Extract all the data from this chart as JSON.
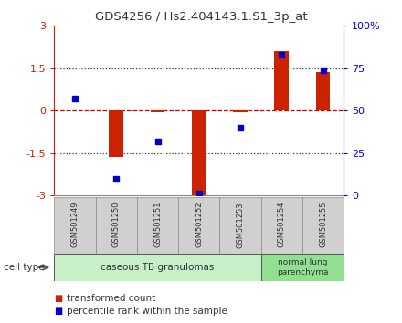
{
  "title": "GDS4256 / Hs2.404143.1.S1_3p_at",
  "samples": [
    "GSM501249",
    "GSM501250",
    "GSM501251",
    "GSM501252",
    "GSM501253",
    "GSM501254",
    "GSM501255"
  ],
  "transformed_count": [
    0.02,
    -1.65,
    -0.05,
    -3.0,
    -0.05,
    2.1,
    1.35
  ],
  "percentile_rank": [
    57,
    10,
    32,
    1,
    40,
    83,
    74
  ],
  "ylim_left": [
    -3,
    3
  ],
  "ylim_right": [
    0,
    100
  ],
  "yticks_left": [
    -3,
    -1.5,
    0,
    1.5,
    3
  ],
  "yticks_right": [
    0,
    25,
    50,
    75,
    100
  ],
  "ytick_labels_right": [
    "0",
    "25",
    "50",
    "75",
    "100%"
  ],
  "bar_color": "#cc2200",
  "dot_color": "#0000cc",
  "zero_line_color": "#cc0000",
  "dotted_line_color": "#333333",
  "group1_label": "caseous TB granulomas",
  "group2_label": "normal lung\nparenchyma",
  "cell_type_label": "cell type",
  "legend_bar_label": "transformed count",
  "legend_dot_label": "percentile rank within the sample",
  "background_color": "#ffffff",
  "group1_bg": "#c8f0c8",
  "group2_bg": "#90e090"
}
